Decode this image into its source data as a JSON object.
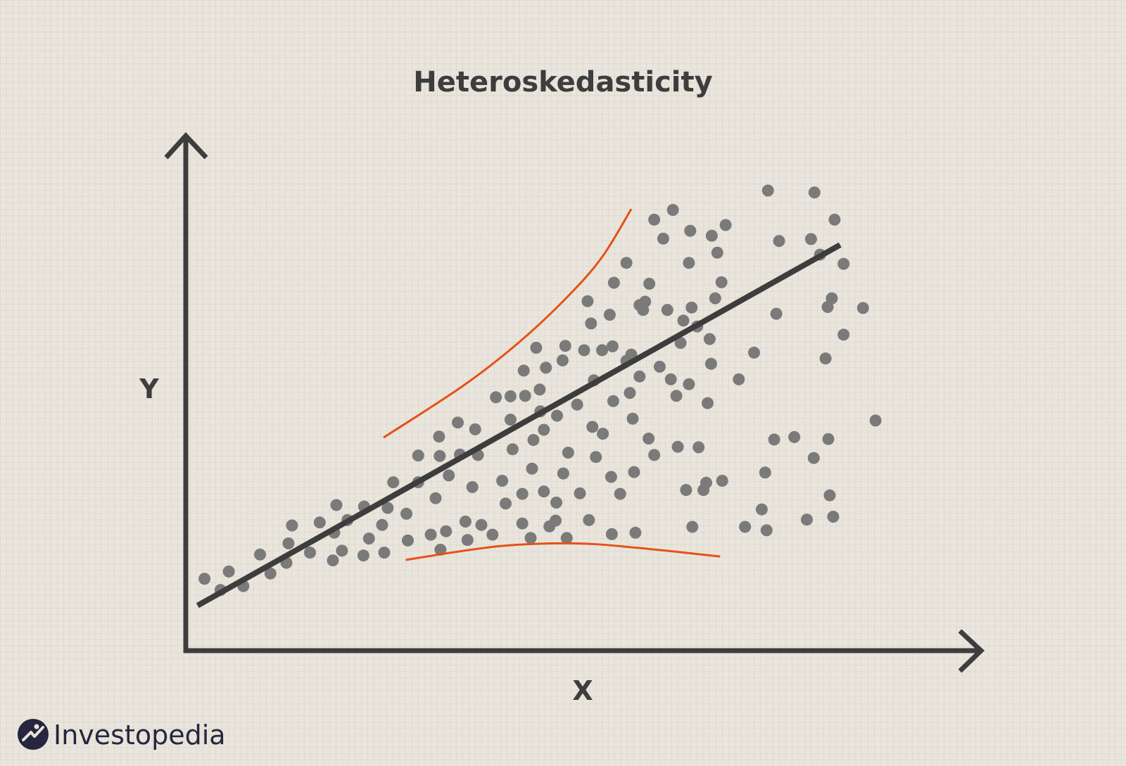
{
  "chart_data": {
    "type": "scatter",
    "title": "Heteroskedasticity",
    "xlabel": "X",
    "ylabel": "Y",
    "xlim": [
      0,
      100
    ],
    "ylim": [
      0,
      100
    ],
    "grid": false,
    "points": [
      [
        2.7,
        14.8
      ],
      [
        5.0,
        12.5
      ],
      [
        6.2,
        16.3
      ],
      [
        8.3,
        13.3
      ],
      [
        10.7,
        19.8
      ],
      [
        12.2,
        15.9
      ],
      [
        14.5,
        18.1
      ],
      [
        14.8,
        22.1
      ],
      [
        15.3,
        25.8
      ],
      [
        17.9,
        20.2
      ],
      [
        19.3,
        26.4
      ],
      [
        21.2,
        18.6
      ],
      [
        21.4,
        24.3
      ],
      [
        21.7,
        30.0
      ],
      [
        22.5,
        20.6
      ],
      [
        23.3,
        26.9
      ],
      [
        25.6,
        19.6
      ],
      [
        25.7,
        29.7
      ],
      [
        26.4,
        23.1
      ],
      [
        28.3,
        25.9
      ],
      [
        28.6,
        20.2
      ],
      [
        29.1,
        29.4
      ],
      [
        29.9,
        34.7
      ],
      [
        31.8,
        28.2
      ],
      [
        32.0,
        22.7
      ],
      [
        33.5,
        34.7
      ],
      [
        33.5,
        40.2
      ],
      [
        35.3,
        23.9
      ],
      [
        36.0,
        31.4
      ],
      [
        36.7,
        20.8
      ],
      [
        36.5,
        44.1
      ],
      [
        36.6,
        40.1
      ],
      [
        37.5,
        24.6
      ],
      [
        37.9,
        36.1
      ],
      [
        39.2,
        47.0
      ],
      [
        39.5,
        40.4
      ],
      [
        40.3,
        26.6
      ],
      [
        40.6,
        22.8
      ],
      [
        41.3,
        33.7
      ],
      [
        41.7,
        45.6
      ],
      [
        42.1,
        40.3
      ],
      [
        42.6,
        25.9
      ],
      [
        44.2,
        23.9
      ],
      [
        44.7,
        52.2
      ],
      [
        45.6,
        35.0
      ],
      [
        46.1,
        30.3
      ],
      [
        46.8,
        52.4
      ],
      [
        46.8,
        47.6
      ],
      [
        47.1,
        41.5
      ],
      [
        48.5,
        32.3
      ],
      [
        48.5,
        26.2
      ],
      [
        48.7,
        57.7
      ],
      [
        48.9,
        52.5
      ],
      [
        49.7,
        23.2
      ],
      [
        49.9,
        37.5
      ],
      [
        50.1,
        43.4
      ],
      [
        50.5,
        62.4
      ],
      [
        51.0,
        53.8
      ],
      [
        51.1,
        49.3
      ],
      [
        51.6,
        32.8
      ],
      [
        51.6,
        45.5
      ],
      [
        51.9,
        58.3
      ],
      [
        52.4,
        25.6
      ],
      [
        53.3,
        26.8
      ],
      [
        53.4,
        30.5
      ],
      [
        53.5,
        48.4
      ],
      [
        54.3,
        59.8
      ],
      [
        54.4,
        36.5
      ],
      [
        54.7,
        62.8
      ],
      [
        54.9,
        23.2
      ],
      [
        55.1,
        40.8
      ],
      [
        56.4,
        50.7
      ],
      [
        56.8,
        32.4
      ],
      [
        57.4,
        61.9
      ],
      [
        57.9,
        72.0
      ],
      [
        58.1,
        26.9
      ],
      [
        58.4,
        67.4
      ],
      [
        58.6,
        46.1
      ],
      [
        58.8,
        55.7
      ],
      [
        59.1,
        39.9
      ],
      [
        60.0,
        61.9
      ],
      [
        60.1,
        44.7
      ],
      [
        61.1,
        69.2
      ],
      [
        61.3,
        35.8
      ],
      [
        61.4,
        24.0
      ],
      [
        61.5,
        62.7
      ],
      [
        61.6,
        51.4
      ],
      [
        61.7,
        75.8
      ],
      [
        62.6,
        32.3
      ],
      [
        63.5,
        59.7
      ],
      [
        63.5,
        79.9
      ],
      [
        64.0,
        53.1
      ],
      [
        64.2,
        61.0
      ],
      [
        64.4,
        47.8
      ],
      [
        64.6,
        36.8
      ],
      [
        64.8,
        24.3
      ],
      [
        65.4,
        71.2
      ],
      [
        65.4,
        56.5
      ],
      [
        65.9,
        70.2
      ],
      [
        66.2,
        71.9
      ],
      [
        66.7,
        43.7
      ],
      [
        66.8,
        75.6
      ],
      [
        67.5,
        88.8
      ],
      [
        67.5,
        40.3
      ],
      [
        68.3,
        58.5
      ],
      [
        68.8,
        84.9
      ],
      [
        69.4,
        70.2
      ],
      [
        69.9,
        55.9
      ],
      [
        70.2,
        90.8
      ],
      [
        70.7,
        52.5
      ],
      [
        70.9,
        42.0
      ],
      [
        71.3,
        63.4
      ],
      [
        71.7,
        68.0
      ],
      [
        72.1,
        33.1
      ],
      [
        72.5,
        54.9
      ],
      [
        72.5,
        79.9
      ],
      [
        72.7,
        86.5
      ],
      [
        72.9,
        70.7
      ],
      [
        73.0,
        25.5
      ],
      [
        73.7,
        66.8
      ],
      [
        73.9,
        41.9
      ],
      [
        74.6,
        33.1
      ],
      [
        75.0,
        34.6
      ],
      [
        75.2,
        51.0
      ],
      [
        75.5,
        64.2
      ],
      [
        75.7,
        59.1
      ],
      [
        75.8,
        85.5
      ],
      [
        76.3,
        72.6
      ],
      [
        76.6,
        82.0
      ],
      [
        77.3,
        35.0
      ],
      [
        77.2,
        75.9
      ],
      [
        77.8,
        87.7
      ],
      [
        79.7,
        55.9
      ],
      [
        80.6,
        25.5
      ],
      [
        81.9,
        61.4
      ],
      [
        83.0,
        29.1
      ],
      [
        83.5,
        36.7
      ],
      [
        83.7,
        24.8
      ],
      [
        83.9,
        94.8
      ],
      [
        84.8,
        43.5
      ],
      [
        85.1,
        69.4
      ],
      [
        85.5,
        84.4
      ],
      [
        87.7,
        44.0
      ],
      [
        89.5,
        27.0
      ],
      [
        90.1,
        84.8
      ],
      [
        90.5,
        39.7
      ],
      [
        90.6,
        94.4
      ],
      [
        91.4,
        81.6
      ],
      [
        92.2,
        60.2
      ],
      [
        92.5,
        70.8
      ],
      [
        92.6,
        43.6
      ],
      [
        92.8,
        32.0
      ],
      [
        93.1,
        72.6
      ],
      [
        93.3,
        27.6
      ],
      [
        93.5,
        88.8
      ],
      [
        94.8,
        79.7
      ],
      [
        94.8,
        65.1
      ],
      [
        97.6,
        70.6
      ],
      [
        99.4,
        47.4
      ]
    ],
    "trend_line": {
      "x": [
        1.7,
        94.3
      ],
      "y": [
        9.3,
        83.6
      ]
    },
    "upper_bound": [
      [
        28.5,
        43.9
      ],
      [
        40.0,
        54.6
      ],
      [
        48.0,
        63.5
      ],
      [
        55.0,
        72.9
      ],
      [
        60.0,
        81.1
      ],
      [
        64.2,
        91.0
      ]
    ],
    "lower_bound": [
      [
        31.7,
        18.7
      ],
      [
        45.0,
        21.5
      ],
      [
        56.0,
        22.1
      ],
      [
        65.0,
        21.2
      ],
      [
        77.0,
        19.4
      ]
    ],
    "colors": {
      "points": "#7a7a7a",
      "trend_line": "#3d3d3d",
      "bounds": "#e6511a",
      "axes": "#3d3d3d"
    }
  },
  "brand": {
    "logo_text": "Investopedia",
    "logo_icon": "investopedia-logo-icon"
  }
}
